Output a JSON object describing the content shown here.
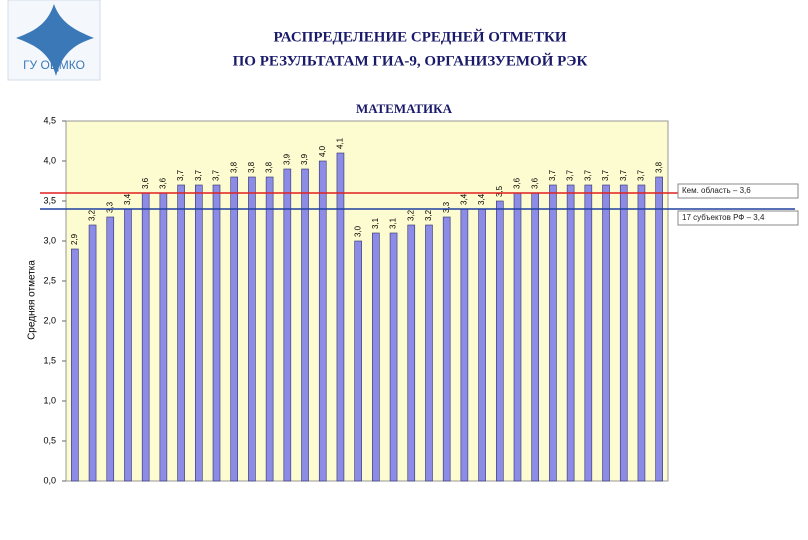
{
  "logo": {
    "text": "ГУ ОЦМКО"
  },
  "chart_data": {
    "type": "bar",
    "title": "РАСПРЕДЕЛЕНИЕ СРЕДНЕЙ ОТМЕТКИ",
    "subtitle": "ПО РЕЗУЛЬТАТАМ ГИА-9, ОРГАНИЗУЕМОЙ РЭК",
    "chart_title": "МАТЕМАТИКА",
    "y_label": "Средняя отметка",
    "categories": [
      null,
      null,
      null,
      null,
      null,
      null,
      null,
      null,
      null,
      null,
      null,
      null,
      null,
      null,
      null,
      null,
      null,
      null,
      null,
      null,
      null,
      null,
      null,
      null,
      null,
      null,
      null,
      null,
      null,
      null,
      null,
      null,
      null,
      null
    ],
    "values": [
      2.9,
      3.2,
      3.3,
      3.4,
      3.6,
      3.6,
      3.7,
      3.7,
      3.7,
      3.8,
      3.8,
      3.8,
      3.9,
      3.9,
      4.0,
      4.1,
      3.0,
      3.1,
      3.1,
      3.2,
      3.2,
      3.3,
      3.4,
      3.4,
      3.5,
      3.6,
      3.6,
      3.7,
      3.7,
      3.7,
      3.7,
      3.7,
      3.7,
      3.8
    ],
    "value_labels": [
      "2,9",
      "3,2",
      "3,3",
      "3,4",
      "3,6",
      "3,6",
      "3,7",
      "3,7",
      "3,7",
      "3,8",
      "3,8",
      "3,8",
      "3,9",
      "3,9",
      "4,0",
      "4,1",
      "3,0",
      "3,1",
      "3,1",
      "3,2",
      "3,2",
      "3,3",
      "3,4",
      "3,4",
      "3,5",
      "3,6",
      "3,6",
      "3,7",
      "3,7",
      "3,7",
      "3,7",
      "3,7",
      "3,7",
      "3,8"
    ],
    "color": "#8c8ce6",
    "ylim": [
      0,
      4.5
    ],
    "yticks": [
      {
        "value": 0,
        "label": "0,0"
      },
      {
        "value": 0.5,
        "label": "0,5"
      },
      {
        "value": 1,
        "label": "1,0"
      },
      {
        "value": 1.5,
        "label": "1,5"
      },
      {
        "value": 2,
        "label": "2,0"
      },
      {
        "value": 2.5,
        "label": "2,5"
      },
      {
        "value": 3,
        "label": "3,0"
      },
      {
        "value": 3.5,
        "label": "3,5"
      },
      {
        "value": 4,
        "label": "4,0"
      },
      {
        "value": 4.5,
        "label": "4,5"
      }
    ],
    "reference_lines": [
      {
        "value": 3.6,
        "label": "Кем. область – 3,6",
        "color": "#e02020"
      },
      {
        "value": 3.4,
        "label": "17 субъектов РФ – 3,4",
        "color": "#2040a0"
      }
    ]
  }
}
